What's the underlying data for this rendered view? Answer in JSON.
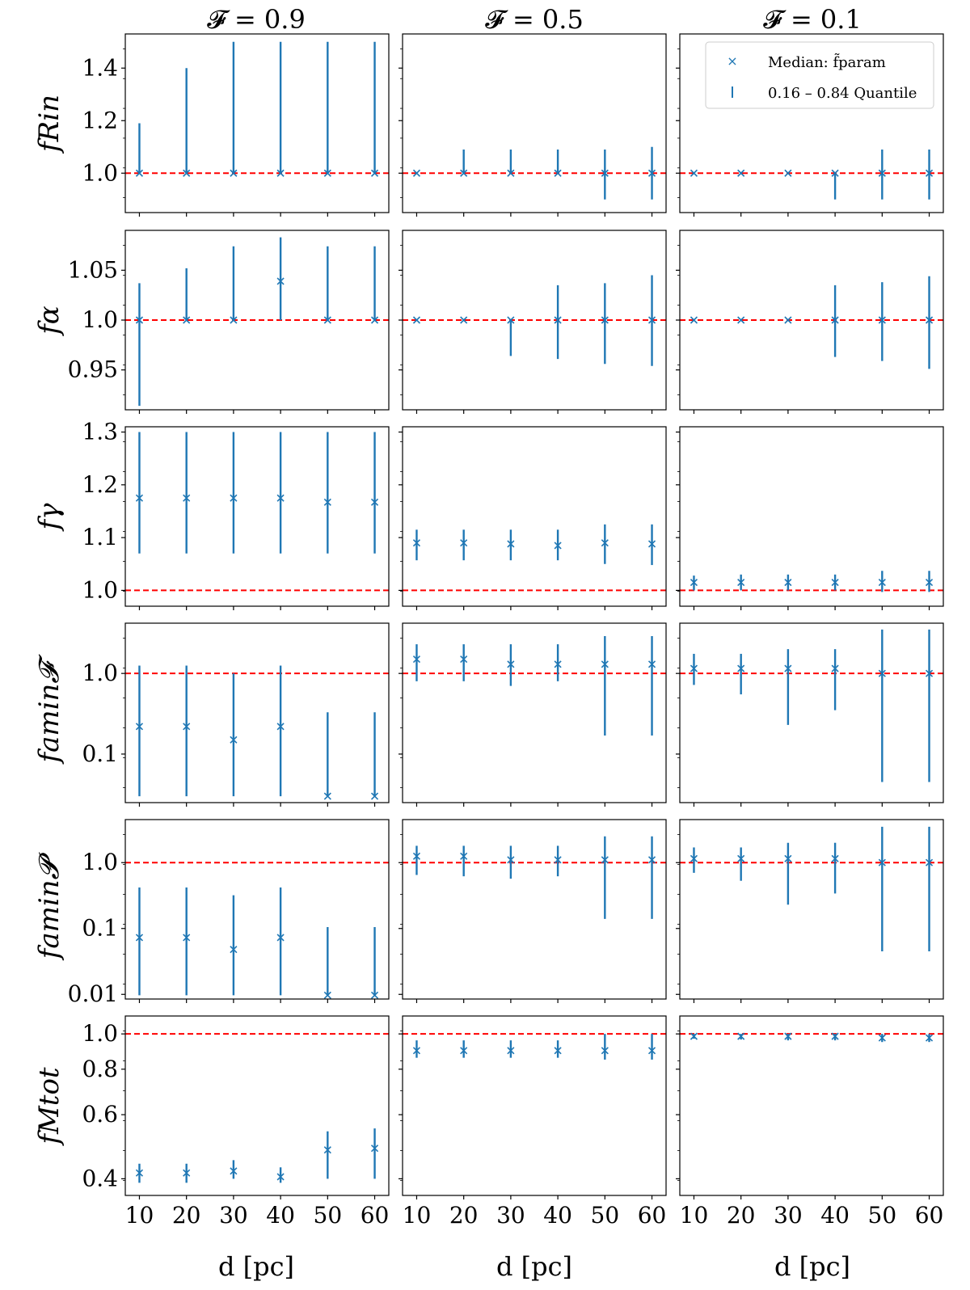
{
  "colors": {
    "series": "#1f77b4",
    "reference": "#ff0000"
  },
  "legend": {
    "median_label": "Median: f̃param",
    "quantile_label": "0.16 – 0.84 Quantile"
  },
  "columns": [
    {
      "title": "𝓕 = 0.9"
    },
    {
      "title": "𝓕 = 0.5"
    },
    {
      "title": "𝓕 = 0.1"
    }
  ],
  "xlabel": "d [pc]",
  "xticks": [
    "10",
    "20",
    "30",
    "40",
    "50",
    "60"
  ],
  "chart_data": [
    {
      "type": "scatter",
      "row": "f_Rin",
      "ylabel": "fRin",
      "scale": "linear",
      "ylim": [
        0.85,
        1.53
      ],
      "yticks": [
        {
          "v": 1.0,
          "label": "1.0"
        },
        {
          "v": 1.2,
          "label": "1.2"
        },
        {
          "v": 1.4,
          "label": "1.4"
        }
      ],
      "reference": 1.0,
      "x": [
        10,
        20,
        30,
        40,
        50,
        60
      ],
      "panels": [
        {
          "median": [
            1.0,
            1.0,
            1.0,
            1.0,
            1.0,
            1.0
          ],
          "low": [
            1.0,
            1.0,
            1.0,
            1.0,
            1.0,
            1.0
          ],
          "high": [
            1.19,
            1.4,
            1.5,
            1.5,
            1.5,
            1.5
          ]
        },
        {
          "median": [
            1.0,
            1.0,
            1.0,
            1.0,
            1.0,
            1.0
          ],
          "low": [
            1.0,
            1.0,
            1.0,
            1.0,
            0.9,
            0.9
          ],
          "high": [
            1.0,
            1.09,
            1.09,
            1.09,
            1.09,
            1.1
          ]
        },
        {
          "median": [
            1.0,
            1.0,
            1.0,
            1.0,
            1.0,
            1.0
          ],
          "low": [
            1.0,
            1.0,
            1.0,
            0.9,
            0.9,
            0.9
          ],
          "high": [
            1.0,
            1.0,
            1.0,
            1.0,
            1.09,
            1.09
          ]
        }
      ]
    },
    {
      "type": "scatter",
      "row": "f_alpha",
      "ylabel": "fα",
      "scale": "linear",
      "ylim": [
        0.91,
        1.09
      ],
      "yticks": [
        {
          "v": 0.95,
          "label": "0.95"
        },
        {
          "v": 1.0,
          "label": "1.0"
        },
        {
          "v": 1.05,
          "label": "1.05"
        }
      ],
      "reference": 1.0,
      "x": [
        10,
        20,
        30,
        40,
        50,
        60
      ],
      "panels": [
        {
          "median": [
            1.0,
            1.0,
            1.0,
            1.039,
            1.0,
            1.0
          ],
          "low": [
            0.914,
            1.0,
            1.0,
            1.0,
            1.0,
            1.0
          ],
          "high": [
            1.037,
            1.052,
            1.074,
            1.083,
            1.074,
            1.074
          ]
        },
        {
          "median": [
            1.0,
            1.0,
            1.0,
            1.0,
            1.0,
            1.0
          ],
          "low": [
            1.0,
            1.0,
            0.964,
            0.961,
            0.956,
            0.954
          ],
          "high": [
            1.0,
            1.0,
            1.0,
            1.035,
            1.037,
            1.045
          ]
        },
        {
          "median": [
            1.0,
            1.0,
            1.0,
            1.0,
            1.0,
            1.0
          ],
          "low": [
            1.0,
            1.0,
            1.0,
            0.963,
            0.959,
            0.951
          ],
          "high": [
            1.0,
            1.0,
            1.0,
            1.035,
            1.038,
            1.044
          ]
        }
      ]
    },
    {
      "type": "scatter",
      "row": "f_gamma",
      "ylabel": "fγ",
      "scale": "linear",
      "ylim": [
        0.97,
        1.31
      ],
      "yticks": [
        {
          "v": 1.0,
          "label": "1.0"
        },
        {
          "v": 1.1,
          "label": "1.1"
        },
        {
          "v": 1.2,
          "label": "1.2"
        },
        {
          "v": 1.3,
          "label": "1.3"
        }
      ],
      "reference": 1.0,
      "x": [
        10,
        20,
        30,
        40,
        50,
        60
      ],
      "panels": [
        {
          "median": [
            1.175,
            1.175,
            1.175,
            1.175,
            1.167,
            1.167
          ],
          "low": [
            1.07,
            1.07,
            1.07,
            1.07,
            1.07,
            1.07
          ],
          "high": [
            1.3,
            1.3,
            1.3,
            1.3,
            1.3,
            1.3
          ]
        },
        {
          "median": [
            1.09,
            1.09,
            1.088,
            1.085,
            1.09,
            1.088
          ],
          "low": [
            1.057,
            1.057,
            1.057,
            1.057,
            1.05,
            1.048
          ],
          "high": [
            1.115,
            1.115,
            1.115,
            1.115,
            1.125,
            1.125
          ]
        },
        {
          "median": [
            1.015,
            1.015,
            1.015,
            1.015,
            1.015,
            1.015
          ],
          "low": [
            1.0,
            1.0,
            1.0,
            1.0,
            0.997,
            0.997
          ],
          "high": [
            1.028,
            1.03,
            1.03,
            1.03,
            1.037,
            1.037
          ]
        }
      ]
    },
    {
      "type": "scatter",
      "row": "f_amin_F",
      "ylabel": "famin𝓕",
      "scale": "log",
      "ylim": [
        0.025,
        4.2
      ],
      "yticks": [
        {
          "v": 0.1,
          "label": "0.1"
        },
        {
          "v": 1.0,
          "label": "1.0"
        }
      ],
      "reference": 1.0,
      "x": [
        10,
        20,
        30,
        40,
        50,
        60
      ],
      "panels": [
        {
          "median": [
            0.22,
            0.22,
            0.15,
            0.22,
            0.03,
            0.03
          ],
          "low": [
            0.03,
            0.03,
            0.03,
            0.03,
            0.03,
            0.03
          ],
          "high": [
            1.25,
            1.25,
            1.0,
            1.25,
            0.33,
            0.33
          ]
        },
        {
          "median": [
            1.5,
            1.5,
            1.3,
            1.3,
            1.3,
            1.3
          ],
          "low": [
            0.8,
            0.8,
            0.7,
            0.8,
            0.17,
            0.17
          ],
          "high": [
            2.3,
            2.3,
            2.3,
            2.3,
            2.9,
            2.9
          ]
        },
        {
          "median": [
            1.15,
            1.15,
            1.15,
            1.15,
            1.0,
            1.0
          ],
          "low": [
            0.72,
            0.55,
            0.23,
            0.35,
            0.045,
            0.045
          ],
          "high": [
            1.75,
            1.75,
            2.0,
            2.0,
            3.5,
            3.5
          ]
        }
      ]
    },
    {
      "type": "scatter",
      "row": "f_amin_P",
      "ylabel": "famin𝓟",
      "scale": "log",
      "ylim": [
        0.0085,
        4.5
      ],
      "yticks": [
        {
          "v": 0.01,
          "label": "0.01"
        },
        {
          "v": 0.1,
          "label": "0.1"
        },
        {
          "v": 1.0,
          "label": "1.0"
        }
      ],
      "reference": 1.0,
      "x": [
        10,
        20,
        30,
        40,
        50,
        60
      ],
      "panels": [
        {
          "median": [
            0.073,
            0.073,
            0.048,
            0.073,
            0.0097,
            0.0097
          ],
          "low": [
            0.0097,
            0.0097,
            0.0097,
            0.0097,
            0.0097,
            0.0097
          ],
          "high": [
            0.42,
            0.42,
            0.32,
            0.42,
            0.105,
            0.105
          ]
        },
        {
          "median": [
            1.25,
            1.25,
            1.1,
            1.1,
            1.1,
            1.1
          ],
          "low": [
            0.65,
            0.62,
            0.57,
            0.62,
            0.14,
            0.14
          ],
          "high": [
            1.8,
            1.8,
            1.8,
            1.8,
            2.5,
            2.5
          ]
        },
        {
          "median": [
            1.15,
            1.15,
            1.15,
            1.15,
            1.0,
            1.0
          ],
          "low": [
            0.7,
            0.53,
            0.23,
            0.34,
            0.045,
            0.045
          ],
          "high": [
            1.7,
            1.7,
            2.0,
            2.0,
            3.5,
            3.5
          ]
        }
      ]
    },
    {
      "type": "scatter",
      "row": "f_Mtot",
      "ylabel": "fMtot",
      "scale": "log",
      "ylim": [
        0.36,
        1.12
      ],
      "yticks": [
        {
          "v": 0.4,
          "label": "0.4"
        },
        {
          "v": 0.6,
          "label": "0.6"
        },
        {
          "v": 0.8,
          "label": "0.8"
        },
        {
          "v": 1.0,
          "label": "1.0"
        }
      ],
      "reference": 1.0,
      "x": [
        10,
        20,
        30,
        40,
        50,
        60
      ],
      "panels": [
        {
          "median": [
            0.415,
            0.415,
            0.42,
            0.405,
            0.48,
            0.485
          ],
          "low": [
            0.39,
            0.39,
            0.4,
            0.39,
            0.4,
            0.4
          ],
          "high": [
            0.44,
            0.44,
            0.45,
            0.43,
            0.54,
            0.55
          ]
        },
        {
          "median": [
            0.9,
            0.9,
            0.9,
            0.9,
            0.9,
            0.9
          ],
          "low": [
            0.86,
            0.86,
            0.86,
            0.86,
            0.85,
            0.85
          ],
          "high": [
            0.96,
            0.96,
            0.96,
            0.96,
            1.0,
            1.0
          ]
        },
        {
          "median": [
            0.985,
            0.985,
            0.985,
            0.985,
            0.975,
            0.975
          ],
          "low": [
            0.97,
            0.965,
            0.96,
            0.96,
            0.95,
            0.95
          ],
          "high": [
            1.0,
            1.0,
            1.0,
            1.0,
            1.0,
            1.0
          ]
        }
      ]
    }
  ]
}
